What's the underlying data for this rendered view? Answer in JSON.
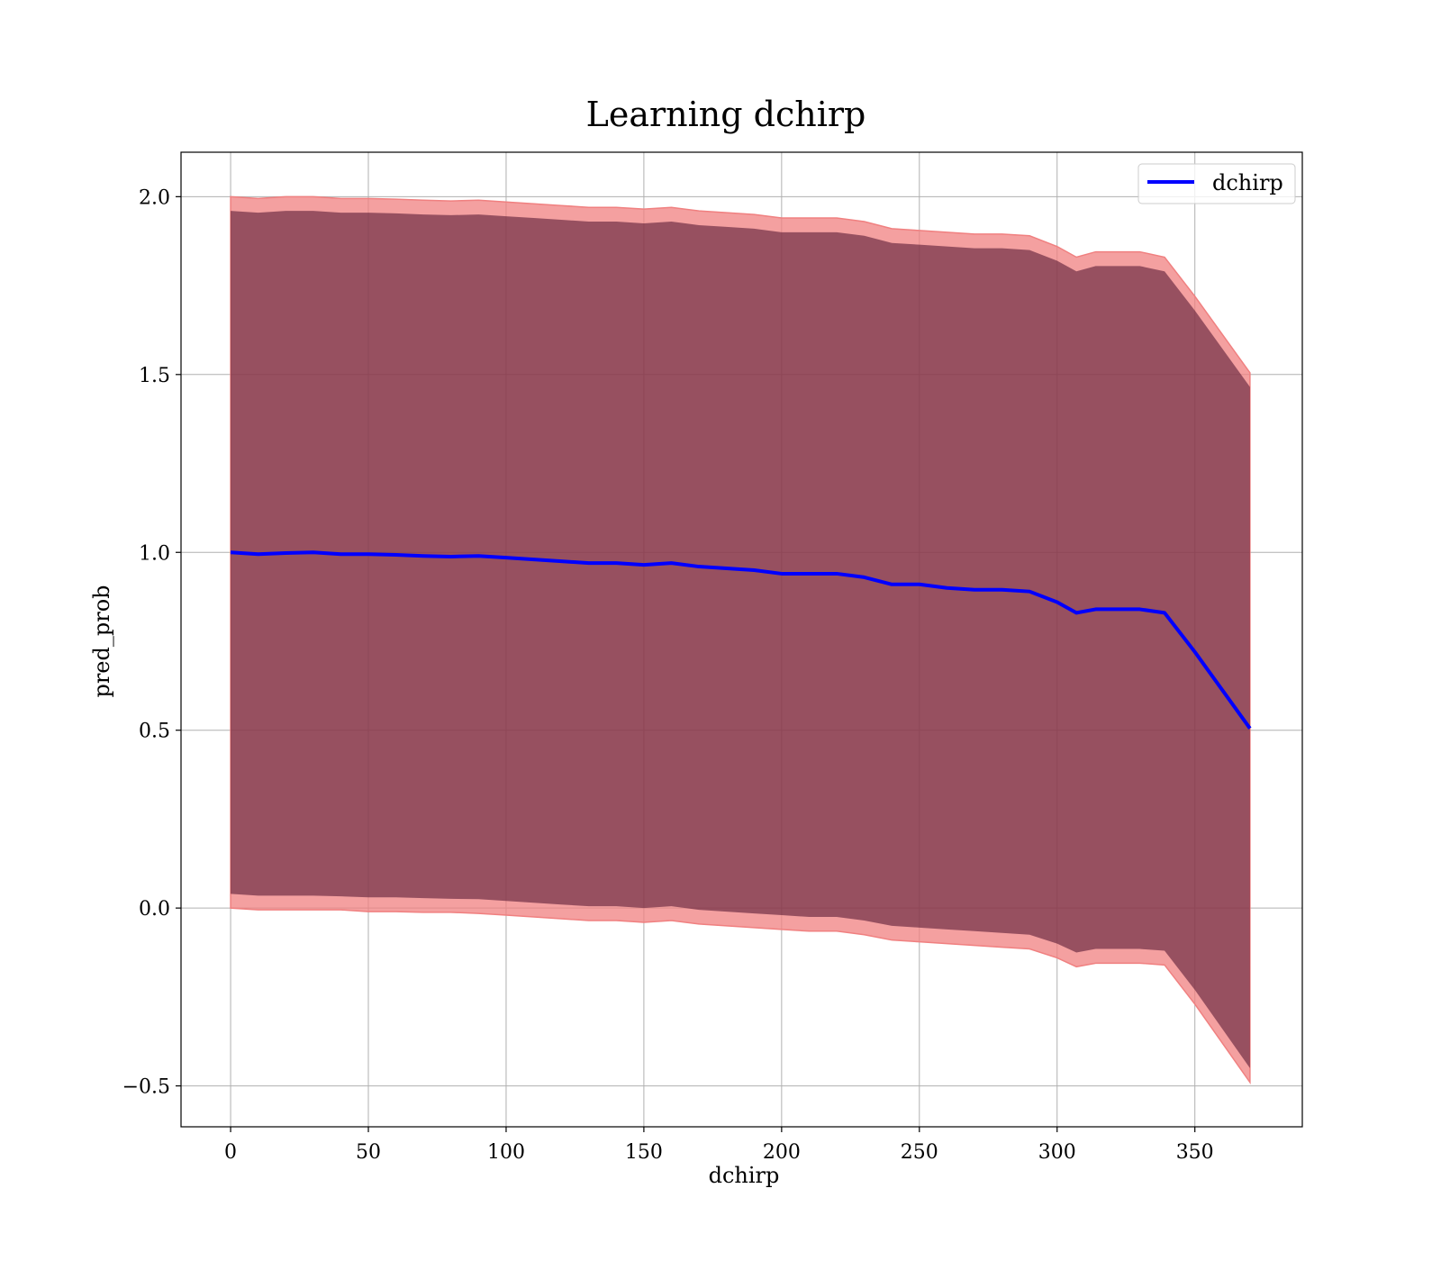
{
  "chart_data": {
    "type": "line",
    "title": "Learning dchirp",
    "xlabel": "dchirp",
    "ylabel": "pred_prob",
    "xlim": [
      -18,
      389
    ],
    "ylim": [
      -0.615,
      2.125
    ],
    "xticks": [
      0,
      50,
      100,
      150,
      200,
      250,
      300,
      350
    ],
    "yticks": [
      -0.5,
      0.0,
      0.5,
      1.0,
      1.5,
      2.0
    ],
    "xtick_labels": [
      "0",
      "50",
      "100",
      "150",
      "200",
      "250",
      "300",
      "350"
    ],
    "ytick_labels": [
      "−0.5",
      "0.0",
      "0.5",
      "1.0",
      "1.5",
      "2.0"
    ],
    "grid": true,
    "legend": {
      "placement": "top-right",
      "entries": [
        "dchirp"
      ]
    },
    "colors": {
      "line": "#0000ff",
      "band_outer": "#f08080",
      "band_inner": "#4b0f2c",
      "grid": "#b0b0b0"
    },
    "series": [
      {
        "name": "dchirp",
        "x": [
          0,
          10,
          20,
          30,
          40,
          50,
          60,
          70,
          80,
          90,
          100,
          110,
          120,
          130,
          140,
          150,
          160,
          170,
          180,
          190,
          200,
          210,
          220,
          230,
          240,
          250,
          260,
          270,
          280,
          290,
          300,
          307,
          314,
          320,
          330,
          339,
          350,
          370
        ],
        "y": [
          1.0,
          0.995,
          0.998,
          1.0,
          0.995,
          0.995,
          0.993,
          0.99,
          0.988,
          0.99,
          0.985,
          0.98,
          0.975,
          0.97,
          0.97,
          0.965,
          0.97,
          0.96,
          0.955,
          0.95,
          0.94,
          0.94,
          0.94,
          0.93,
          0.91,
          0.91,
          0.9,
          0.895,
          0.895,
          0.89,
          0.86,
          0.83,
          0.84,
          0.84,
          0.84,
          0.83,
          0.72,
          0.505
        ],
        "outer_lower": [
          0.0,
          -0.005,
          -0.005,
          -0.005,
          -0.005,
          -0.01,
          -0.01,
          -0.012,
          -0.012,
          -0.015,
          -0.02,
          -0.025,
          -0.03,
          -0.035,
          -0.035,
          -0.04,
          -0.035,
          -0.045,
          -0.05,
          -0.055,
          -0.06,
          -0.065,
          -0.065,
          -0.075,
          -0.09,
          -0.095,
          -0.1,
          -0.105,
          -0.11,
          -0.115,
          -0.14,
          -0.165,
          -0.155,
          -0.155,
          -0.155,
          -0.16,
          -0.27,
          -0.49
        ],
        "outer_upper": [
          2.0,
          1.995,
          2.0,
          2.0,
          1.995,
          1.995,
          1.993,
          1.99,
          1.988,
          1.99,
          1.985,
          1.98,
          1.975,
          1.97,
          1.97,
          1.965,
          1.97,
          1.96,
          1.955,
          1.95,
          1.94,
          1.94,
          1.94,
          1.93,
          1.91,
          1.905,
          1.9,
          1.895,
          1.895,
          1.89,
          1.86,
          1.83,
          1.845,
          1.845,
          1.845,
          1.83,
          1.72,
          1.505
        ],
        "inner_lower": [
          0.04,
          0.035,
          0.035,
          0.035,
          0.033,
          0.03,
          0.03,
          0.028,
          0.026,
          0.025,
          0.02,
          0.015,
          0.01,
          0.005,
          0.005,
          0.0,
          0.005,
          -0.005,
          -0.01,
          -0.015,
          -0.02,
          -0.025,
          -0.025,
          -0.035,
          -0.05,
          -0.055,
          -0.06,
          -0.065,
          -0.07,
          -0.075,
          -0.1,
          -0.125,
          -0.115,
          -0.115,
          -0.115,
          -0.12,
          -0.23,
          -0.45
        ],
        "inner_upper": [
          1.96,
          1.955,
          1.96,
          1.96,
          1.955,
          1.955,
          1.953,
          1.95,
          1.948,
          1.95,
          1.945,
          1.94,
          1.935,
          1.93,
          1.93,
          1.925,
          1.93,
          1.92,
          1.915,
          1.91,
          1.9,
          1.9,
          1.9,
          1.89,
          1.87,
          1.865,
          1.86,
          1.855,
          1.855,
          1.85,
          1.82,
          1.79,
          1.805,
          1.805,
          1.805,
          1.79,
          1.68,
          1.465
        ]
      }
    ]
  }
}
